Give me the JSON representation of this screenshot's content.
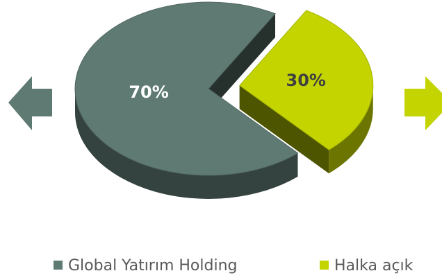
{
  "chart_data": {
    "type": "pie",
    "categories": [
      "Global Yatırım Holding",
      "Halka açık"
    ],
    "values": [
      70,
      30
    ],
    "value_labels": [
      "70%",
      "30%"
    ],
    "colors": [
      "#5f7a72",
      "#c3d400"
    ],
    "legend": "bottom"
  }
}
